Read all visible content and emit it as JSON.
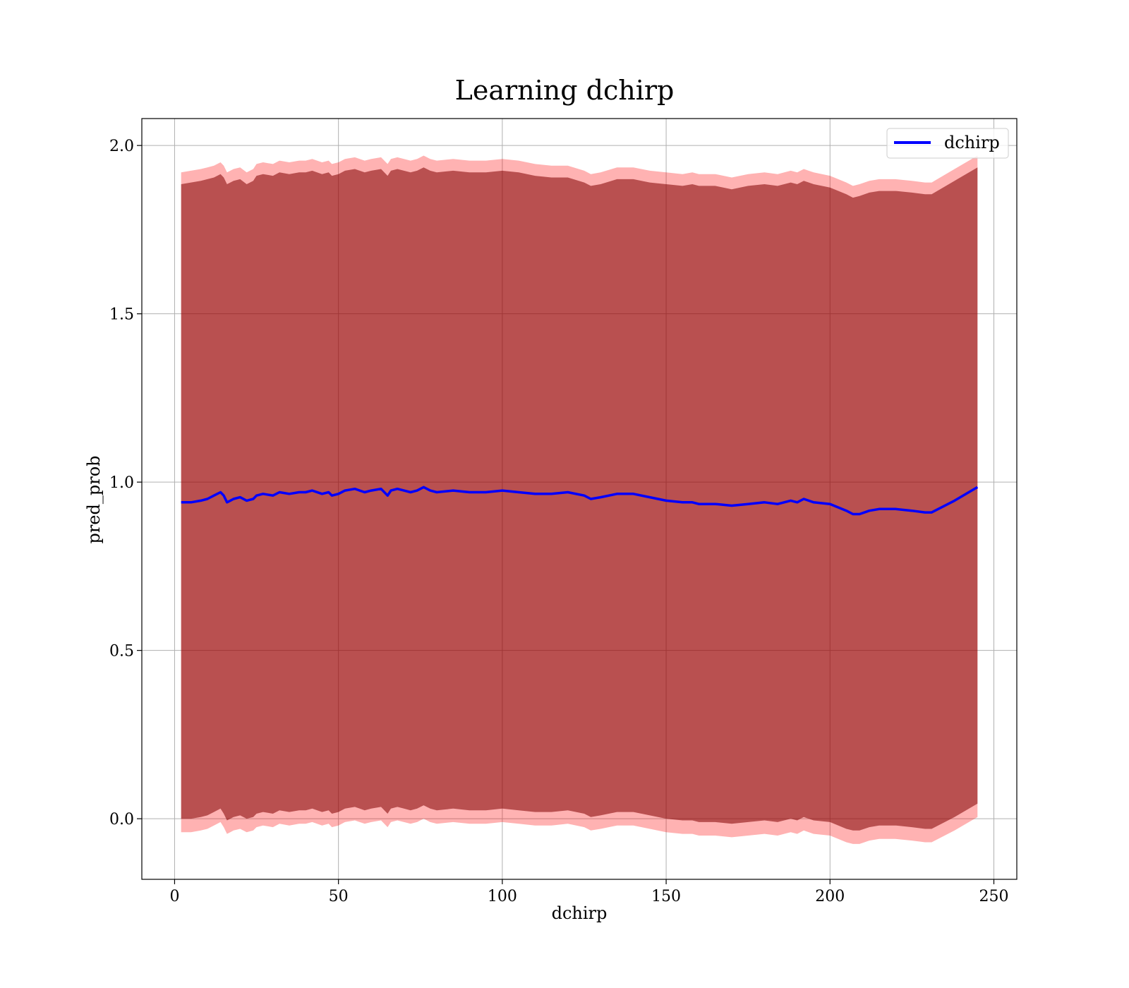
{
  "chart_data": {
    "type": "line",
    "title": "Learning dchirp",
    "xlabel": "dchirp",
    "ylabel": "pred_prob",
    "xlim": [
      -10,
      257
    ],
    "ylim": [
      -0.18,
      2.08
    ],
    "xticks": [
      0,
      50,
      100,
      150,
      200,
      250
    ],
    "yticks": [
      0.0,
      0.5,
      1.0,
      1.5,
      2.0
    ],
    "xtick_labels": [
      "0",
      "50",
      "100",
      "150",
      "200",
      "250"
    ],
    "ytick_labels": [
      "0.0",
      "0.5",
      "1.0",
      "1.5",
      "2.0"
    ],
    "grid": true,
    "legend_position": "upper right",
    "series": [
      {
        "name": "dchirp",
        "color": "#0000ff",
        "x": [
          2,
          5,
          8,
          10,
          12,
          14,
          15,
          16,
          17,
          18,
          20,
          22,
          24,
          25,
          27,
          30,
          32,
          35,
          38,
          40,
          42,
          45,
          47,
          48,
          50,
          52,
          55,
          58,
          60,
          63,
          65,
          66,
          68,
          70,
          72,
          74,
          76,
          78,
          80,
          85,
          90,
          95,
          100,
          105,
          110,
          115,
          120,
          125,
          127,
          130,
          135,
          140,
          145,
          150,
          155,
          158,
          160,
          165,
          170,
          175,
          180,
          184,
          188,
          190,
          192,
          195,
          200,
          205,
          207,
          209,
          212,
          215,
          220,
          225,
          229,
          231,
          238,
          245
        ],
        "y": [
          0.94,
          0.94,
          0.945,
          0.95,
          0.96,
          0.97,
          0.96,
          0.94,
          0.945,
          0.95,
          0.955,
          0.945,
          0.95,
          0.96,
          0.965,
          0.96,
          0.97,
          0.965,
          0.97,
          0.97,
          0.975,
          0.965,
          0.97,
          0.96,
          0.965,
          0.975,
          0.98,
          0.97,
          0.975,
          0.98,
          0.96,
          0.975,
          0.98,
          0.975,
          0.97,
          0.975,
          0.985,
          0.975,
          0.97,
          0.975,
          0.97,
          0.97,
          0.975,
          0.97,
          0.965,
          0.965,
          0.97,
          0.96,
          0.95,
          0.955,
          0.965,
          0.965,
          0.955,
          0.945,
          0.94,
          0.94,
          0.935,
          0.935,
          0.93,
          0.935,
          0.94,
          0.935,
          0.945,
          0.94,
          0.95,
          0.94,
          0.935,
          0.915,
          0.905,
          0.905,
          0.915,
          0.92,
          0.92,
          0.915,
          0.91,
          0.91,
          0.945,
          0.985
        ],
        "outer_band": {
          "color": "#ff0000",
          "opacity": 0.3,
          "upper": [
            1.92,
            1.925,
            1.93,
            1.935,
            1.94,
            1.95,
            1.94,
            1.92,
            1.925,
            1.93,
            1.935,
            1.92,
            1.93,
            1.945,
            1.95,
            1.945,
            1.955,
            1.95,
            1.955,
            1.955,
            1.96,
            1.95,
            1.955,
            1.945,
            1.95,
            1.96,
            1.965,
            1.955,
            1.96,
            1.965,
            1.945,
            1.96,
            1.965,
            1.96,
            1.955,
            1.96,
            1.97,
            1.96,
            1.955,
            1.96,
            1.955,
            1.955,
            1.96,
            1.955,
            1.945,
            1.94,
            1.94,
            1.925,
            1.915,
            1.92,
            1.935,
            1.935,
            1.925,
            1.92,
            1.915,
            1.92,
            1.915,
            1.915,
            1.905,
            1.915,
            1.92,
            1.915,
            1.925,
            1.92,
            1.93,
            1.92,
            1.91,
            1.89,
            1.88,
            1.885,
            1.895,
            1.9,
            1.9,
            1.895,
            1.89,
            1.89,
            1.93,
            1.97
          ],
          "lower": [
            -0.04,
            -0.04,
            -0.035,
            -0.03,
            -0.02,
            -0.01,
            -0.025,
            -0.045,
            -0.04,
            -0.035,
            -0.03,
            -0.04,
            -0.035,
            -0.025,
            -0.02,
            -0.025,
            -0.015,
            -0.02,
            -0.015,
            -0.015,
            -0.01,
            -0.02,
            -0.015,
            -0.025,
            -0.02,
            -0.01,
            -0.005,
            -0.015,
            -0.01,
            -0.005,
            -0.025,
            -0.01,
            -0.005,
            -0.01,
            -0.015,
            -0.01,
            0.0,
            -0.01,
            -0.015,
            -0.01,
            -0.015,
            -0.015,
            -0.01,
            -0.015,
            -0.02,
            -0.02,
            -0.015,
            -0.025,
            -0.035,
            -0.03,
            -0.02,
            -0.02,
            -0.03,
            -0.04,
            -0.045,
            -0.045,
            -0.05,
            -0.05,
            -0.055,
            -0.05,
            -0.045,
            -0.05,
            -0.04,
            -0.045,
            -0.035,
            -0.045,
            -0.05,
            -0.07,
            -0.075,
            -0.075,
            -0.065,
            -0.06,
            -0.06,
            -0.065,
            -0.07,
            -0.07,
            -0.035,
            0.005
          ]
        },
        "inner_band": {
          "color": "#800000",
          "opacity": 0.55,
          "upper": [
            1.885,
            1.89,
            1.895,
            1.9,
            1.905,
            1.915,
            1.905,
            1.885,
            1.89,
            1.895,
            1.9,
            1.885,
            1.895,
            1.91,
            1.915,
            1.91,
            1.92,
            1.915,
            1.92,
            1.92,
            1.925,
            1.915,
            1.92,
            1.91,
            1.915,
            1.925,
            1.93,
            1.92,
            1.925,
            1.93,
            1.91,
            1.925,
            1.93,
            1.925,
            1.92,
            1.925,
            1.935,
            1.925,
            1.92,
            1.925,
            1.92,
            1.92,
            1.925,
            1.92,
            1.91,
            1.905,
            1.905,
            1.89,
            1.88,
            1.885,
            1.9,
            1.9,
            1.89,
            1.885,
            1.88,
            1.885,
            1.88,
            1.88,
            1.87,
            1.88,
            1.885,
            1.88,
            1.89,
            1.885,
            1.895,
            1.885,
            1.875,
            1.855,
            1.845,
            1.85,
            1.86,
            1.865,
            1.865,
            1.86,
            1.855,
            1.855,
            1.895,
            1.935
          ],
          "lower": [
            0.0,
            0.0,
            0.005,
            0.01,
            0.02,
            0.03,
            0.015,
            -0.005,
            0.0,
            0.005,
            0.01,
            0.0,
            0.005,
            0.015,
            0.02,
            0.015,
            0.025,
            0.02,
            0.025,
            0.025,
            0.03,
            0.02,
            0.025,
            0.015,
            0.02,
            0.03,
            0.035,
            0.025,
            0.03,
            0.035,
            0.015,
            0.03,
            0.035,
            0.03,
            0.025,
            0.03,
            0.04,
            0.03,
            0.025,
            0.03,
            0.025,
            0.025,
            0.03,
            0.025,
            0.02,
            0.02,
            0.025,
            0.015,
            0.005,
            0.01,
            0.02,
            0.02,
            0.01,
            0.0,
            -0.005,
            -0.005,
            -0.01,
            -0.01,
            -0.015,
            -0.01,
            -0.005,
            -0.01,
            0.0,
            -0.005,
            0.005,
            -0.005,
            -0.01,
            -0.03,
            -0.035,
            -0.035,
            -0.025,
            -0.02,
            -0.02,
            -0.025,
            -0.03,
            -0.03,
            0.005,
            0.045
          ]
        }
      }
    ]
  }
}
